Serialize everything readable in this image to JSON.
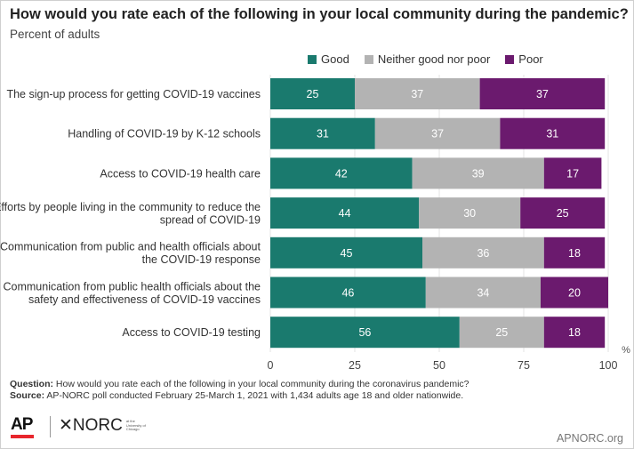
{
  "header": {
    "title": "How would you rate each of the following in your local community during the pandemic?",
    "subtitle": "Percent of adults"
  },
  "legend": [
    {
      "label": "Good",
      "color": "#1a7a6e"
    },
    {
      "label": "Neither good nor poor",
      "color": "#b3b3b3"
    },
    {
      "label": "Poor",
      "color": "#6b1a6e"
    }
  ],
  "chart_data": {
    "type": "bar",
    "orientation": "horizontal",
    "stacked": true,
    "categories": [
      [
        "The sign-up process for getting COVID-19 vaccines"
      ],
      [
        "Handling of COVID-19 by K-12 schools"
      ],
      [
        "Access to COVID-19 health care"
      ],
      [
        "Efforts by people living in the community to reduce the",
        "spread of COVID-19"
      ],
      [
        "Communication from public and health officials about",
        "the COVID-19 response"
      ],
      [
        "Communication from public health officials about the",
        "safety and effectiveness of COVID-19 vaccines"
      ],
      [
        "Access to COVID-19 testing"
      ]
    ],
    "series": [
      {
        "name": "Good",
        "color": "#1a7a6e",
        "label_color": "#ffffff",
        "values": [
          25,
          31,
          42,
          44,
          45,
          46,
          56
        ]
      },
      {
        "name": "Neither good nor poor",
        "color": "#b3b3b3",
        "label_color": "#ffffff",
        "values": [
          37,
          37,
          39,
          30,
          36,
          34,
          25
        ]
      },
      {
        "name": "Poor",
        "color": "#6b1a6e",
        "label_color": "#ffffff",
        "values": [
          37,
          31,
          17,
          25,
          18,
          20,
          18
        ]
      }
    ],
    "xlim": [
      0,
      100
    ],
    "xticks": [
      0,
      25,
      50,
      75,
      100
    ],
    "x_unit_label": "%",
    "grid": true
  },
  "footer": {
    "question_label": "Question:",
    "question_text": " How would you rate each of the following in your local community during the coronavirus pandemic?",
    "source_label": "Source:",
    "source_text": " AP-NORC poll conducted February 25-March 1, 2021 with 1,434 adults age 18 and older nationwide."
  },
  "logos": {
    "ap": "AP",
    "norc_mark": "✕",
    "norc": "NORC",
    "norc_sub": "at the University of Chicago"
  },
  "site": "APNORC.org"
}
